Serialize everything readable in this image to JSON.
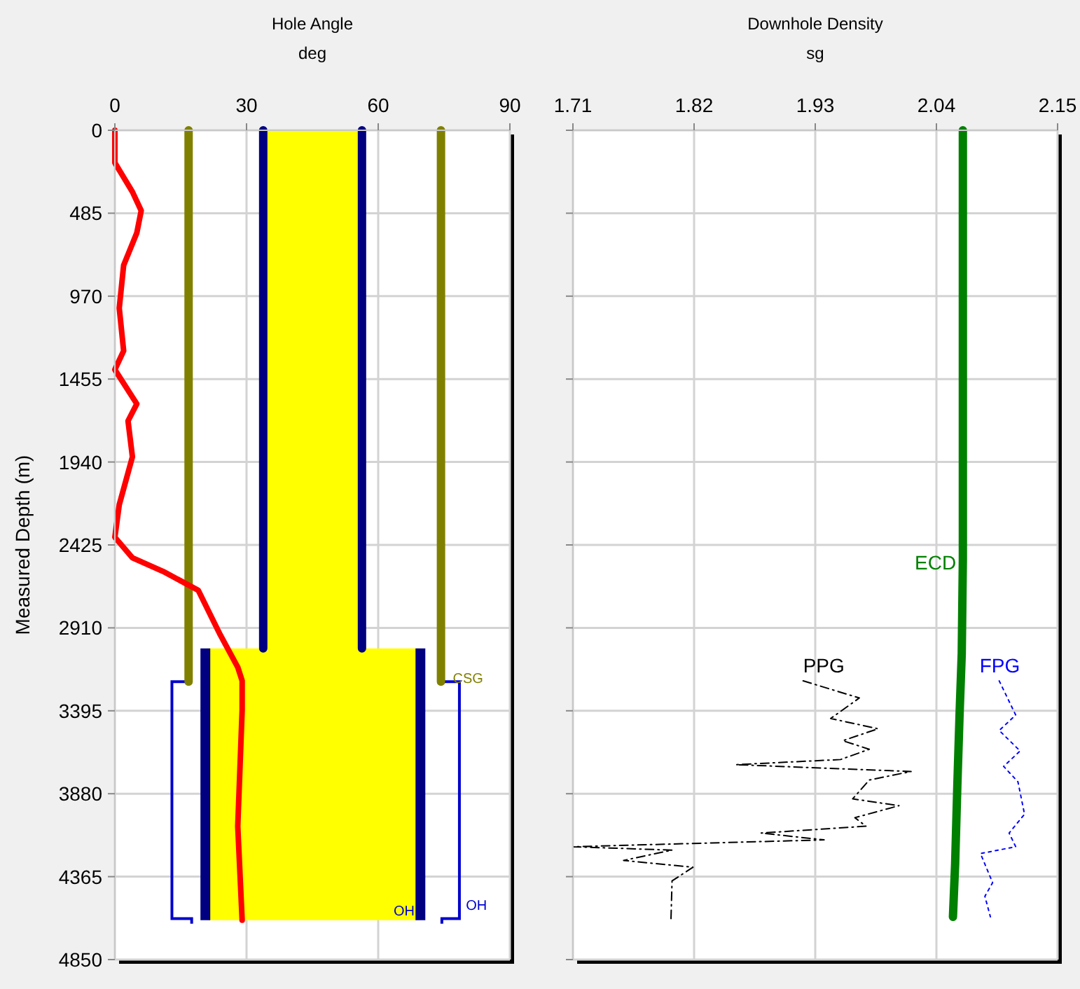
{
  "chart_data": [
    {
      "type": "line",
      "title": "Hole Angle",
      "xlabel": "deg",
      "ylabel": "Measured Depth (m)",
      "xlim": [
        0,
        90
      ],
      "xticks": [
        0,
        30,
        60,
        90
      ],
      "ylim": [
        4850,
        0
      ],
      "yticks": [
        0,
        485,
        970,
        1455,
        1940,
        2425,
        2910,
        3395,
        3880,
        4365,
        4850
      ],
      "grid": true,
      "annotations": [
        "CSG",
        "OH",
        "OH"
      ],
      "series": [
        {
          "color": "#808000",
          "line_style": "solid",
          "x": [
            16.8,
            16.8,
            null,
            74.3,
            74.3
          ],
          "values": [
            0,
            3225,
            null,
            0,
            3225
          ]
        },
        {
          "color": "#000080",
          "line_style": "solid",
          "x": [
            33.8,
            33.8,
            null,
            56.3,
            56.3
          ],
          "values": [
            0,
            3030,
            null,
            0,
            3030
          ]
        },
        {
          "color": "#ff0000",
          "x": [
            0,
            0,
            4,
            6,
            5,
            2,
            1,
            2,
            0,
            5,
            3,
            4,
            1,
            0,
            4,
            11,
            19,
            24,
            28,
            29,
            29,
            28,
            29
          ],
          "values": [
            0,
            190,
            360,
            470,
            600,
            790,
            1040,
            1290,
            1400,
            1600,
            1700,
            1910,
            2190,
            2380,
            2500,
            2580,
            2690,
            2950,
            3140,
            3220,
            3390,
            4070,
            4620
          ]
        }
      ]
    },
    {
      "type": "line",
      "title": "Downhole Density",
      "xlabel": "sg",
      "xlim": [
        1.71,
        2.15
      ],
      "xticks": [
        1.71,
        1.82,
        1.93,
        2.04,
        2.15
      ],
      "ylim": [
        4850,
        0
      ],
      "yticks": [
        0,
        485,
        970,
        1455,
        1940,
        2425,
        2910,
        3395,
        3880,
        4365,
        4850
      ],
      "tick_labels": "x",
      "grid": true,
      "series": [
        {
          "name": "ECD",
          "color": "#008000",
          "line_style": "solid",
          "x": [
            2.064,
            2.064,
            2.063,
            2.061,
            2.059,
            2.057,
            2.055
          ],
          "values": [
            0,
            2510,
            3060,
            3420,
            3830,
            4290,
            4600
          ]
        },
        {
          "name": "PPG",
          "color": "#000000",
          "line_style": "dashed",
          "x": [
            1.919,
            1.97,
            1.944,
            1.987,
            1.955,
            1.979,
            1.953,
            1.858,
            2.017,
            1.979,
            1.964,
            2.006,
            1.966,
            1.976,
            1.881,
            1.938,
            1.71,
            1.8,
            1.756,
            1.819,
            1.8,
            1.799
          ],
          "values": [
            3220,
            3320,
            3440,
            3500,
            3570,
            3620,
            3680,
            3710,
            3750,
            3800,
            3910,
            3950,
            4020,
            4070,
            4110,
            4150,
            4190,
            4210,
            4270,
            4310,
            4390,
            4620
          ]
        },
        {
          "name": "FPG",
          "color": "#0000ff",
          "line_style": "dotted",
          "x": [
            2.097,
            2.112,
            2.097,
            2.116,
            2.101,
            2.114,
            2.12,
            2.106,
            2.112,
            2.08,
            2.091,
            2.084,
            2.089
          ],
          "values": [
            3220,
            3420,
            3510,
            3630,
            3720,
            3810,
            4000,
            4110,
            4190,
            4230,
            4400,
            4480,
            4600
          ]
        }
      ]
    }
  ]
}
